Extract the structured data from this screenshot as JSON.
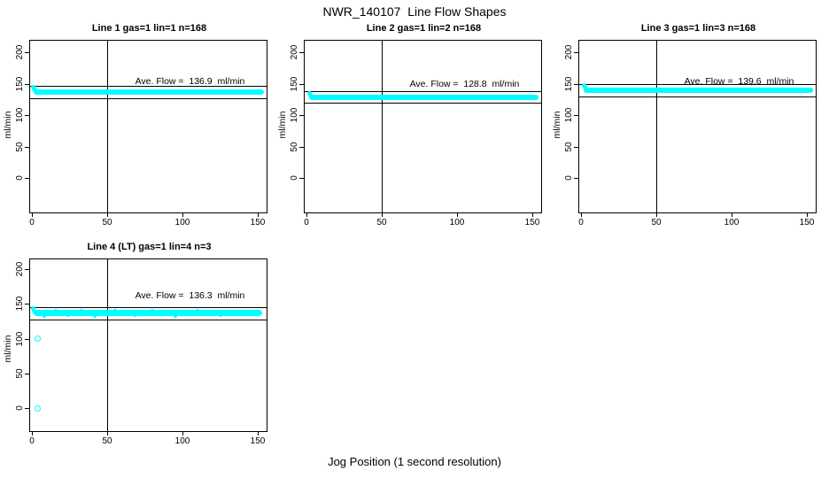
{
  "figure": {
    "title": "NWR_140107  Line Flow Shapes",
    "xlabel": "Jog Position (1 second resolution)"
  },
  "chart_data": {
    "type": "scatter",
    "title": "NWR_140107  Line Flow Shapes",
    "xlabel": "Jog Position (1 second resolution)",
    "ylabel": "ml/min",
    "xlim": [
      0,
      150
    ],
    "ylim": [
      0,
      200
    ],
    "x_ticks": [
      "0",
      "50",
      "100",
      "150"
    ],
    "y_ticks": [
      "0",
      "50",
      "100",
      "150",
      "200"
    ],
    "vline_x": 50,
    "marker_color": "#00ffff",
    "axis_color": "#000000",
    "grid": false,
    "panels": [
      {
        "id": "line-1",
        "title": "Line 1 gas=1 lin=1 n=168",
        "ave_flow": 136.9,
        "ave_flow_label": "Ave. Flow =  136.9  ml/min",
        "label_value": 153,
        "ref_lines": [
          146.5,
          127.3
        ],
        "band": {
          "x_start": 1,
          "x_end": 154,
          "value": 137,
          "thickness": 6
        },
        "lead_points": [
          {
            "x": 1,
            "v": 145
          },
          {
            "x": 1.6,
            "v": 142
          },
          {
            "x": 2.2,
            "v": 139.5
          }
        ],
        "noise_points": [],
        "outliers": []
      },
      {
        "id": "line-2",
        "title": "Line 2 gas=1 lin=2 n=168",
        "ave_flow": 128.8,
        "ave_flow_label": "Ave. Flow =  128.8  ml/min",
        "label_value": 150,
        "ref_lines": [
          137.8,
          119.8
        ],
        "band": {
          "x_start": 2,
          "x_end": 154,
          "value": 128,
          "thickness": 6
        },
        "lead_points": [
          {
            "x": 2,
            "v": 135
          },
          {
            "x": 2.6,
            "v": 131.5
          }
        ],
        "noise_points": [],
        "outliers": []
      },
      {
        "id": "line-3",
        "title": "Line 3 gas=1 lin=3 n=168",
        "ave_flow": 139.6,
        "ave_flow_label": "Ave. Flow =  139.6  ml/min",
        "label_value": 153,
        "ref_lines": [
          149.4,
          129.8
        ],
        "band": {
          "x_start": 2,
          "x_end": 154,
          "value": 140,
          "thickness": 6
        },
        "lead_points": [
          {
            "x": 2,
            "v": 147
          },
          {
            "x": 2.6,
            "v": 144
          },
          {
            "x": 3.2,
            "v": 141.5
          }
        ],
        "noise_points": [],
        "outliers": []
      },
      {
        "id": "line-4",
        "title": "Line 4 (LT) gas=1 lin=4 n=3",
        "ave_flow": 136.3,
        "ave_flow_label": "Ave. Flow =  136.3  ml/min",
        "label_value": 162,
        "ref_lines": [
          145.8,
          126.8
        ],
        "band": {
          "x_start": 1,
          "x_end": 153,
          "value": 136.5,
          "thickness": 7
        },
        "lead_points": [
          {
            "x": 1,
            "v": 143
          },
          {
            "x": 1.6,
            "v": 140
          }
        ],
        "noise_points": [
          {
            "x": 8,
            "v": 133
          },
          {
            "x": 16,
            "v": 140
          },
          {
            "x": 24,
            "v": 133.5
          },
          {
            "x": 33,
            "v": 139.5
          },
          {
            "x": 42,
            "v": 133
          },
          {
            "x": 55,
            "v": 139.5
          },
          {
            "x": 68,
            "v": 133.5
          },
          {
            "x": 80,
            "v": 140
          },
          {
            "x": 95,
            "v": 133
          },
          {
            "x": 110,
            "v": 139.5
          },
          {
            "x": 125,
            "v": 133.5
          },
          {
            "x": 140,
            "v": 139
          }
        ],
        "outliers": [
          {
            "x": 4,
            "v": 100
          },
          {
            "x": 4,
            "v": 0
          }
        ]
      }
    ]
  }
}
